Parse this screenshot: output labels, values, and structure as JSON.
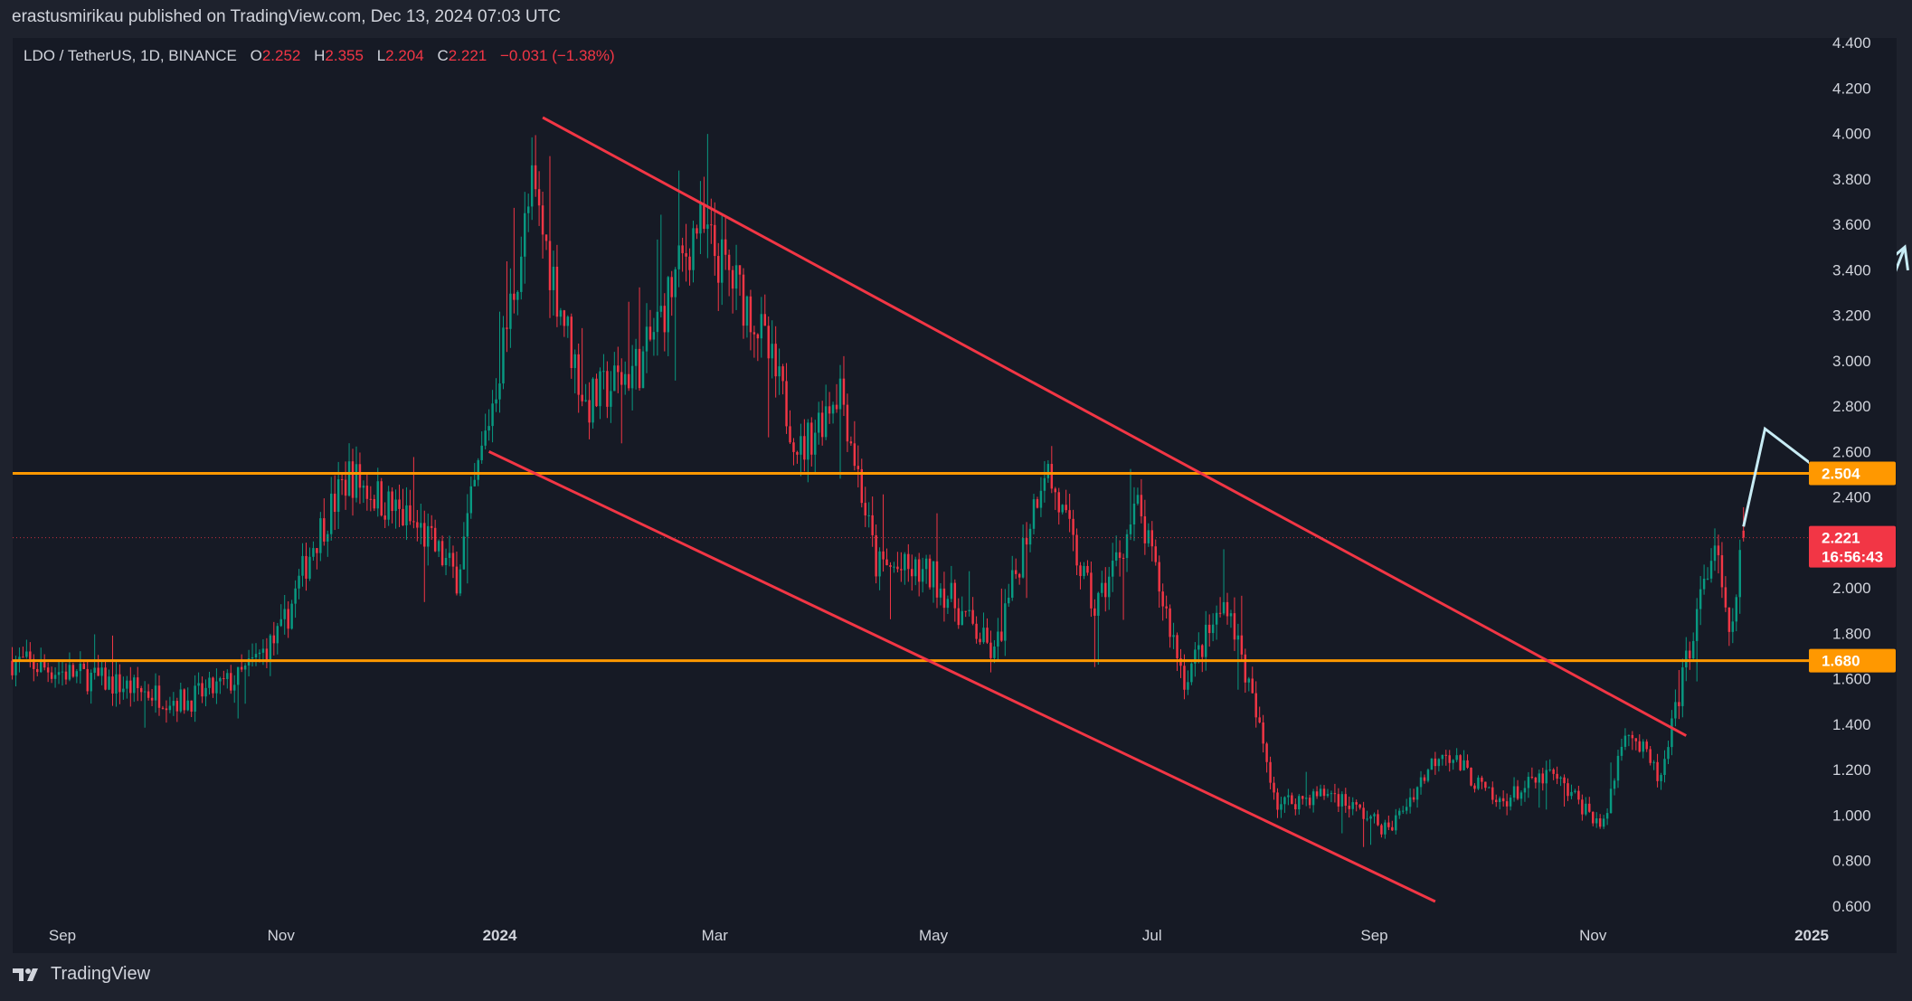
{
  "publisher": "erastusmirikau published on TradingView.com, Dec 13, 2024 07:03 UTC",
  "legend": {
    "symbol": "LDO / TetherUS, 1D, BINANCE",
    "o_label": "O",
    "o_value": "2.252",
    "h_label": "H",
    "h_value": "2.355",
    "l_label": "L",
    "l_value": "2.204",
    "c_label": "C",
    "c_value": "2.221",
    "change": "−0.031 (−1.38%)"
  },
  "brand": "TradingView",
  "colors": {
    "up": "#089981",
    "down": "#f23645",
    "level": "#ff9800",
    "channel": "#f23645",
    "projection": "#c8ecf5",
    "background": "#161a25"
  },
  "badges": {
    "resistance": "2.504",
    "support": "1.680",
    "price": "2.221",
    "countdown": "16:56:43"
  },
  "chart_data": {
    "type": "candlestick",
    "xlabel": "",
    "ylabel": "",
    "x_ticks": [
      "Sep",
      "Nov",
      "2024",
      "Mar",
      "May",
      "Jul",
      "Sep",
      "Nov",
      "2025"
    ],
    "y_ticks": [
      "4.400",
      "4.200",
      "4.000",
      "3.800",
      "3.600",
      "3.400",
      "3.200",
      "3.000",
      "2.800",
      "2.600",
      "2.400",
      "2.200",
      "2.000",
      "1.800",
      "1.600",
      "1.400",
      "1.200",
      "1.000",
      "0.800",
      "0.600"
    ],
    "ylim": [
      0.6,
      4.4
    ],
    "grid": false,
    "horizontal_levels": [
      2.504,
      1.68
    ],
    "last_price": 2.221,
    "ohlc_last": {
      "open": 2.252,
      "high": 2.355,
      "low": 2.204,
      "close": 2.221
    },
    "price_anchors": [
      {
        "date": "2023-08-18",
        "price": 1.68
      },
      {
        "date": "2023-09-10",
        "price": 1.6
      },
      {
        "date": "2023-10-05",
        "price": 1.5
      },
      {
        "date": "2023-10-20",
        "price": 1.6
      },
      {
        "date": "2023-11-01",
        "price": 1.8
      },
      {
        "date": "2023-11-10",
        "price": 2.2
      },
      {
        "date": "2023-11-20",
        "price": 2.5
      },
      {
        "date": "2023-12-10",
        "price": 2.25
      },
      {
        "date": "2023-12-20",
        "price": 2.05
      },
      {
        "date": "2023-12-31",
        "price": 2.9
      },
      {
        "date": "2024-01-10",
        "price": 3.75
      },
      {
        "date": "2024-01-25",
        "price": 2.8
      },
      {
        "date": "2024-02-10",
        "price": 3.0
      },
      {
        "date": "2024-02-25",
        "price": 3.6
      },
      {
        "date": "2024-03-12",
        "price": 3.2
      },
      {
        "date": "2024-03-25",
        "price": 2.6
      },
      {
        "date": "2024-04-05",
        "price": 2.9
      },
      {
        "date": "2024-04-15",
        "price": 2.1
      },
      {
        "date": "2024-05-01",
        "price": 2.05
      },
      {
        "date": "2024-05-18",
        "price": 1.7
      },
      {
        "date": "2024-06-01",
        "price": 2.55
      },
      {
        "date": "2024-06-15",
        "price": 1.9
      },
      {
        "date": "2024-06-27",
        "price": 2.35
      },
      {
        "date": "2024-07-10",
        "price": 1.6
      },
      {
        "date": "2024-07-22",
        "price": 1.95
      },
      {
        "date": "2024-08-05",
        "price": 1.05
      },
      {
        "date": "2024-08-20",
        "price": 1.1
      },
      {
        "date": "2024-09-05",
        "price": 0.93
      },
      {
        "date": "2024-09-20",
        "price": 1.3
      },
      {
        "date": "2024-10-05",
        "price": 1.05
      },
      {
        "date": "2024-10-20",
        "price": 1.18
      },
      {
        "date": "2024-11-04",
        "price": 0.95
      },
      {
        "date": "2024-11-10",
        "price": 1.4
      },
      {
        "date": "2024-11-20",
        "price": 1.15
      },
      {
        "date": "2024-11-28",
        "price": 1.75
      },
      {
        "date": "2024-12-05",
        "price": 2.2
      },
      {
        "date": "2024-12-09",
        "price": 1.75
      },
      {
        "date": "2024-12-13",
        "price": 2.221
      }
    ],
    "trendlines": [
      {
        "name": "channel-upper",
        "start": {
          "date": "2024-01-13",
          "price": 4.07
        },
        "end": {
          "date": "2024-11-27",
          "price": 1.35
        }
      },
      {
        "name": "channel-lower",
        "start": {
          "date": "2023-12-29",
          "price": 2.6
        },
        "end": {
          "date": "2024-09-18",
          "price": 0.62
        }
      }
    ],
    "projection": [
      {
        "date": "2024-12-13",
        "price": 2.27
      },
      {
        "date": "2024-12-19",
        "price": 2.7
      },
      {
        "date": "2025-01-03",
        "price": 2.52
      },
      {
        "date": "2025-01-27",
        "price": 3.5
      }
    ]
  }
}
